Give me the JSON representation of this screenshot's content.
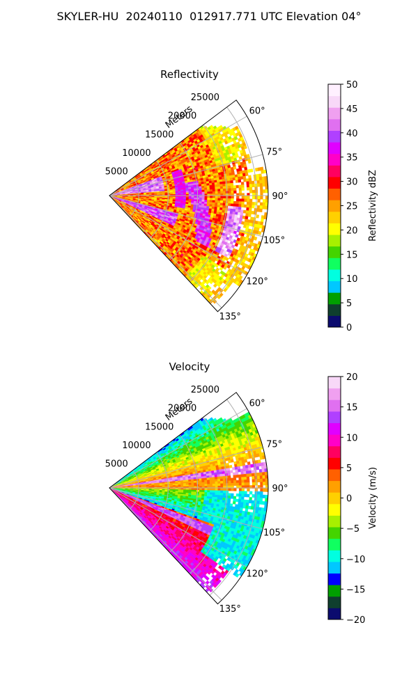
{
  "figure": {
    "title": "SKYLER-HU  20240110  012917.771 UTC Elevation 04°"
  },
  "chart_data": [
    {
      "type": "heatmap",
      "title": "Reflectivity",
      "radial_axis_label": "Meters",
      "radial_range": [
        0,
        27000
      ],
      "radial_ticks": [
        5000,
        10000,
        15000,
        20000,
        25000
      ],
      "radial_tick_labels": [
        "5000",
        "10000",
        "15000",
        "20000",
        "25000"
      ],
      "azimuth_range_deg": [
        53,
        137
      ],
      "azimuth_ticks_deg": [
        60,
        75,
        90,
        105,
        120,
        135
      ],
      "azimuth_tick_labels": [
        "60°",
        "75°",
        "90°",
        "105°",
        "120°",
        "135°"
      ],
      "grid": true,
      "colorbar": {
        "label": "Reflectivity dBZ",
        "range": [
          0,
          50
        ],
        "ticks": [
          0,
          5,
          10,
          15,
          20,
          25,
          30,
          35,
          40,
          45,
          50
        ],
        "tick_labels": [
          "0",
          "5",
          "10",
          "15",
          "20",
          "25",
          "30",
          "35",
          "40",
          "45",
          "50"
        ],
        "colors": [
          "#0b0b6e",
          "#0f3f2e",
          "#00a000",
          "#00c8ff",
          "#00ffe0",
          "#10ff60",
          "#44d400",
          "#a8f000",
          "#ffff00",
          "#ffd000",
          "#ffa000",
          "#ff6000",
          "#ff0000",
          "#ff0060",
          "#ff00c8",
          "#e000ff",
          "#b040ff",
          "#e070f0",
          "#f0a0f0",
          "#f8d8f8",
          "#fff0ff"
        ]
      }
    },
    {
      "type": "heatmap",
      "title": "Velocity",
      "radial_axis_label": "Meters",
      "radial_range": [
        0,
        27000
      ],
      "radial_ticks": [
        5000,
        10000,
        15000,
        20000,
        25000
      ],
      "radial_tick_labels": [
        "5000",
        "10000",
        "15000",
        "20000",
        "25000"
      ],
      "azimuth_range_deg": [
        53,
        137
      ],
      "azimuth_ticks_deg": [
        60,
        75,
        90,
        105,
        120,
        135
      ],
      "azimuth_tick_labels": [
        "60°",
        "75°",
        "90°",
        "105°",
        "120°",
        "135°"
      ],
      "grid": true,
      "colorbar": {
        "label": "Velocity (m/s)",
        "range": [
          -20,
          20
        ],
        "ticks": [
          -20,
          -15,
          -10,
          -5,
          0,
          5,
          10,
          15,
          20
        ],
        "tick_labels": [
          "−20",
          "−15",
          "−10",
          "−5",
          "0",
          "5",
          "10",
          "15",
          "20"
        ],
        "colors": [
          "#0b0b6e",
          "#0f3f2e",
          "#00a000",
          "#0000ff",
          "#00c8ff",
          "#00ffe0",
          "#10ff60",
          "#44d400",
          "#a8f000",
          "#ffff00",
          "#ffd000",
          "#ffa000",
          "#ff6000",
          "#ff0000",
          "#ff0060",
          "#ff00c8",
          "#e000ff",
          "#b040ff",
          "#e070f0",
          "#f0a0f0",
          "#f8d8f8"
        ]
      }
    }
  ]
}
